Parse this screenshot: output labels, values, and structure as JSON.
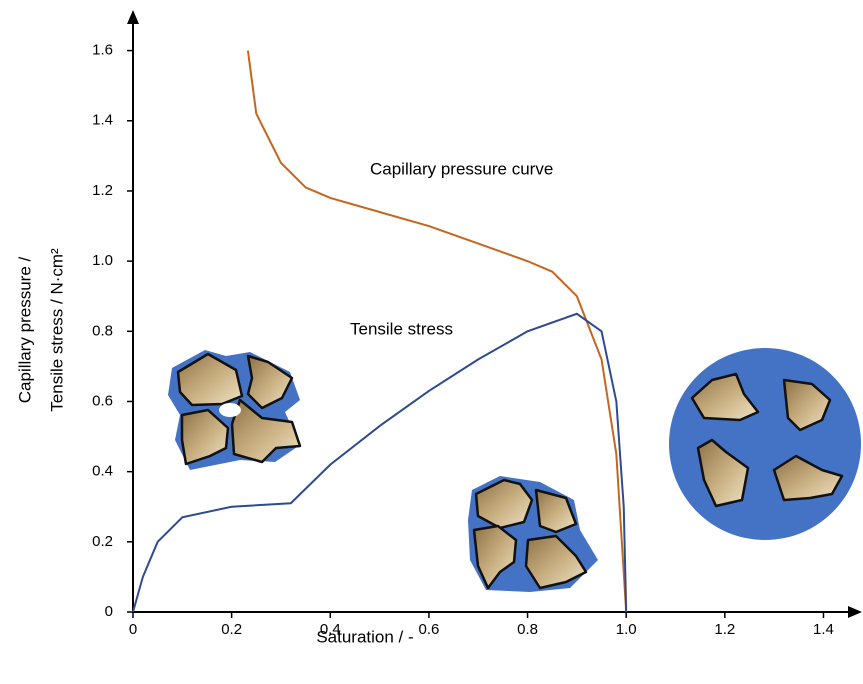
{
  "chart_data": {
    "type": "line",
    "xlabel": "Saturation / -",
    "ylabel": [
      "Capillary pressure /",
      "Tensile stress / N·cm²"
    ],
    "xlim": [
      0,
      1.47
    ],
    "ylim": [
      0,
      1.71
    ],
    "xticks": [
      0,
      0.2,
      0.4,
      0.6,
      0.8,
      {
        "value": 1,
        "label": "1.0"
      },
      1.2,
      1.4
    ],
    "yticks": [
      0,
      0.2,
      0.4,
      0.6,
      0.8,
      {
        "value": 1,
        "label": "1.0"
      },
      1.2,
      1.4,
      1.6
    ],
    "series": [
      {
        "name": "Capillary pressure curve",
        "color": "#c5661f",
        "x": [
          0.233,
          0.25,
          0.3,
          0.35,
          0.4,
          0.5,
          0.6,
          0.7,
          0.8,
          0.85,
          0.9,
          0.95,
          0.98,
          1.0
        ],
        "values": [
          1.6,
          1.42,
          1.28,
          1.21,
          1.18,
          1.14,
          1.1,
          1.05,
          1.0,
          0.97,
          0.9,
          0.72,
          0.45,
          0
        ]
      },
      {
        "name": "Tensile stress",
        "color": "#2e4b8f",
        "x": [
          0,
          0.02,
          0.05,
          0.1,
          0.2,
          0.32,
          0.4,
          0.5,
          0.6,
          0.7,
          0.8,
          0.9,
          0.95,
          0.98,
          0.995,
          1.0
        ],
        "values": [
          0,
          0.1,
          0.2,
          0.27,
          0.3,
          0.31,
          0.42,
          0.53,
          0.63,
          0.72,
          0.8,
          0.85,
          0.8,
          0.6,
          0.3,
          0
        ]
      }
    ]
  }
}
